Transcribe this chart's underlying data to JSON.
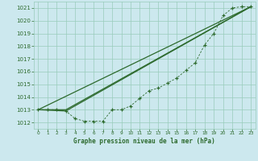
{
  "title": "Graphe pression niveau de la mer (hPa)",
  "bg_color": "#cce8ee",
  "grid_color": "#99ccbb",
  "line_color": "#2d6a2d",
  "xlim": [
    -0.5,
    23.5
  ],
  "ylim": [
    1011.5,
    1021.5
  ],
  "yticks": [
    1012,
    1013,
    1014,
    1015,
    1016,
    1017,
    1018,
    1019,
    1020,
    1021
  ],
  "xticks": [
    0,
    1,
    2,
    3,
    4,
    5,
    6,
    7,
    8,
    9,
    10,
    11,
    12,
    13,
    14,
    15,
    16,
    17,
    18,
    19,
    20,
    21,
    22,
    23
  ],
  "series1_x": [
    0,
    1,
    2,
    3,
    4,
    5,
    6,
    7,
    8,
    9,
    10,
    11,
    12,
    13,
    14,
    15,
    16,
    17,
    18,
    19,
    20,
    21,
    22,
    23
  ],
  "series1_y": [
    1013.0,
    1013.0,
    1013.0,
    1012.9,
    1012.3,
    1012.1,
    1012.1,
    1012.1,
    1013.0,
    1013.0,
    1013.3,
    1013.9,
    1014.5,
    1014.7,
    1015.1,
    1015.5,
    1016.1,
    1016.7,
    1018.1,
    1019.0,
    1020.4,
    1021.0,
    1021.1,
    1021.1
  ],
  "series2_x": [
    0,
    3,
    23
  ],
  "series2_y": [
    1013.0,
    1013.0,
    1021.1
  ],
  "series3_x": [
    0,
    3,
    23
  ],
  "series3_y": [
    1013.0,
    1012.9,
    1021.1
  ],
  "series4_x": [
    0,
    23
  ],
  "series4_y": [
    1013.0,
    1021.1
  ]
}
